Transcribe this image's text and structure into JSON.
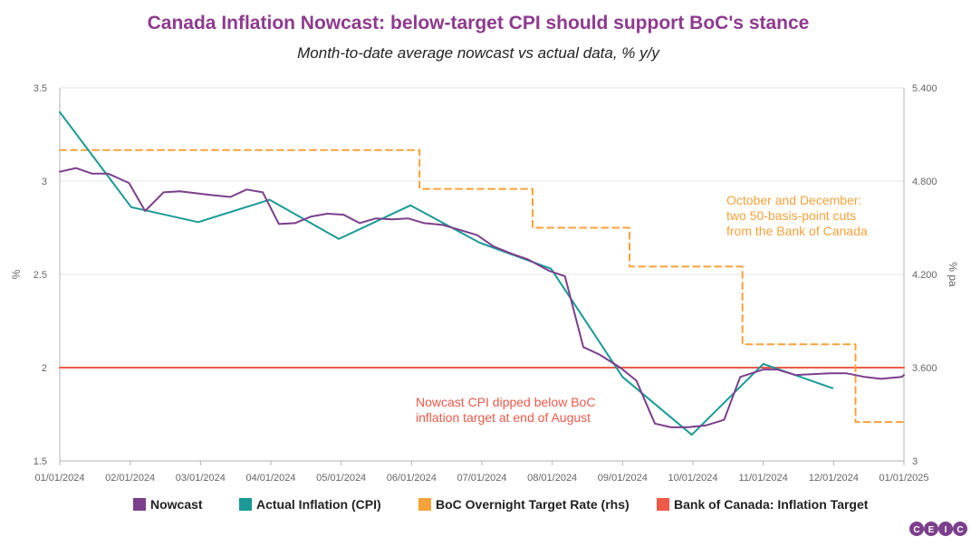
{
  "colors": {
    "title": "#8e3a8e",
    "nowcast": "#7b3f8c",
    "cpi": "#1a9a96",
    "boc_rate": "#f7a23b",
    "target": "#ee5a4a",
    "grid": "#e6e6e6",
    "axis": "#b3b3b3",
    "annotation_orange": "#f7a23b",
    "annotation_red": "#ee5a4a"
  },
  "chart_data": {
    "type": "line",
    "title": "Canada Inflation Nowcast: below-target CPI should support BoC's stance",
    "subtitle": "Month-to-date average nowcast vs actual data, % y/y",
    "ylabel": "%",
    "y2label": "% pa",
    "x_range": [
      "2024-01-01",
      "2025-01-01"
    ],
    "x_ticks": [
      "01/01/2024",
      "02/01/2024",
      "03/01/2024",
      "04/01/2024",
      "05/01/2024",
      "06/01/2024",
      "07/01/2024",
      "08/01/2024",
      "09/01/2024",
      "10/01/2024",
      "11/01/2024",
      "12/01/2024",
      "01/01/2025"
    ],
    "ylim": [
      1.5,
      3.5
    ],
    "y_ticks": [
      "1.5",
      "2",
      "2.5",
      "3",
      "3.5"
    ],
    "y2lim": [
      3.0,
      5.4
    ],
    "y2_ticks": [
      "3",
      "3.600",
      "4.200",
      "4.800",
      "5.400"
    ],
    "grid": "horizontal",
    "series": [
      {
        "name": "Nowcast",
        "axis": "left",
        "points": [
          [
            "2024-01-01",
            3.05
          ],
          [
            "2024-01-08",
            3.07
          ],
          [
            "2024-01-15",
            3.04
          ],
          [
            "2024-01-22",
            3.04
          ],
          [
            "2024-01-31",
            2.99
          ],
          [
            "2024-02-07",
            2.84
          ],
          [
            "2024-02-15",
            2.94
          ],
          [
            "2024-02-22",
            2.945
          ],
          [
            "2024-02-29",
            2.935
          ],
          [
            "2024-03-07",
            2.925
          ],
          [
            "2024-03-15",
            2.915
          ],
          [
            "2024-03-22",
            2.955
          ],
          [
            "2024-03-29",
            2.94
          ],
          [
            "2024-04-05",
            2.77
          ],
          [
            "2024-04-12",
            2.775
          ],
          [
            "2024-04-19",
            2.81
          ],
          [
            "2024-04-26",
            2.825
          ],
          [
            "2024-05-03",
            2.82
          ],
          [
            "2024-05-10",
            2.775
          ],
          [
            "2024-05-17",
            2.8
          ],
          [
            "2024-05-24",
            2.795
          ],
          [
            "2024-05-31",
            2.8
          ],
          [
            "2024-06-07",
            2.775
          ],
          [
            "2024-06-15",
            2.765
          ],
          [
            "2024-06-22",
            2.74
          ],
          [
            "2024-06-30",
            2.71
          ],
          [
            "2024-07-07",
            2.65
          ],
          [
            "2024-07-15",
            2.61
          ],
          [
            "2024-07-22",
            2.58
          ],
          [
            "2024-07-31",
            2.52
          ],
          [
            "2024-08-07",
            2.49
          ],
          [
            "2024-08-15",
            2.11
          ],
          [
            "2024-08-22",
            2.07
          ],
          [
            "2024-08-31",
            2.0
          ],
          [
            "2024-09-07",
            1.93
          ],
          [
            "2024-09-15",
            1.7
          ],
          [
            "2024-09-22",
            1.68
          ],
          [
            "2024-09-29",
            1.68
          ],
          [
            "2024-10-07",
            1.69
          ],
          [
            "2024-10-15",
            1.72
          ],
          [
            "2024-10-22",
            1.95
          ],
          [
            "2024-11-01",
            1.99
          ],
          [
            "2024-11-07",
            1.99
          ],
          [
            "2024-11-15",
            1.96
          ],
          [
            "2024-11-22",
            1.965
          ],
          [
            "2024-11-30",
            1.97
          ],
          [
            "2024-12-07",
            1.97
          ],
          [
            "2024-12-15",
            1.95
          ],
          [
            "2024-12-22",
            1.94
          ],
          [
            "2024-12-31",
            1.95
          ],
          [
            "2025-01-01",
            1.96
          ]
        ]
      },
      {
        "name": "Actual Inflation (CPI)",
        "axis": "left",
        "points": [
          [
            "2024-01-01",
            3.37
          ],
          [
            "2024-02-01",
            2.86
          ],
          [
            "2024-03-01",
            2.78
          ],
          [
            "2024-04-01",
            2.9
          ],
          [
            "2024-05-01",
            2.69
          ],
          [
            "2024-06-01",
            2.87
          ],
          [
            "2024-07-01",
            2.67
          ],
          [
            "2024-08-01",
            2.53
          ],
          [
            "2024-09-01",
            1.95
          ],
          [
            "2024-10-01",
            1.64
          ],
          [
            "2024-11-01",
            2.02
          ],
          [
            "2024-12-01",
            1.89
          ]
        ]
      },
      {
        "name": "BoC Overnight Target Rate (rhs)",
        "axis": "right",
        "style": "dashed-step",
        "points": [
          [
            "2024-01-01",
            5.0
          ],
          [
            "2024-06-05",
            5.0
          ],
          [
            "2024-06-05",
            4.75
          ],
          [
            "2024-07-24",
            4.75
          ],
          [
            "2024-07-24",
            4.5
          ],
          [
            "2024-09-04",
            4.5
          ],
          [
            "2024-09-04",
            4.25
          ],
          [
            "2024-10-23",
            4.25
          ],
          [
            "2024-10-23",
            3.75
          ],
          [
            "2024-12-11",
            3.75
          ],
          [
            "2024-12-11",
            3.25
          ],
          [
            "2025-01-01",
            3.25
          ]
        ]
      },
      {
        "name": "Bank of Canada: Inflation Target",
        "axis": "left",
        "points": [
          [
            "2024-01-01",
            2.0
          ],
          [
            "2025-01-01",
            2.0
          ]
        ]
      }
    ],
    "legend_position": "bottom",
    "annotations": [
      {
        "id": "boc-cuts",
        "lines": [
          "October and December:",
          "two 50-basis-point cuts",
          "from the Bank of Canada"
        ],
        "color": "orange"
      },
      {
        "id": "nowcast-dip",
        "lines": [
          "Nowcast CPI dipped below BoC",
          "inflation target at end of August"
        ],
        "color": "red"
      }
    ]
  },
  "logo": {
    "letters": [
      "C",
      "E",
      "I",
      "C"
    ]
  }
}
